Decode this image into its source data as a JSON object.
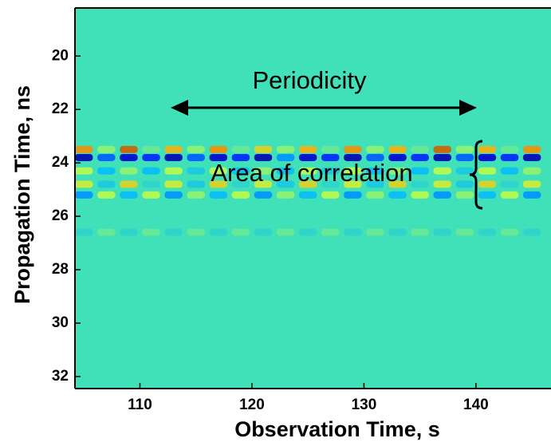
{
  "chart_data": {
    "type": "heatmap",
    "x_label": "Observation Time, s",
    "y_label": "Propagation Time, ns",
    "xlim": [
      104.2,
      146.7
    ],
    "ylim": [
      18.2,
      32.45
    ],
    "y_reversed": true,
    "xticks": [
      110,
      120,
      130,
      140
    ],
    "yticks": [
      20,
      22,
      24,
      26,
      28,
      30,
      32
    ],
    "zlim": [
      -1,
      1
    ],
    "colormap": [
      "#00008f",
      "#0000ff",
      "#00b8ff",
      "#40e0b8",
      "#c8ff40",
      "#ffa000",
      "#8f0000"
    ],
    "x": [
      105,
      107,
      109,
      111,
      113,
      115,
      117,
      119,
      121,
      123,
      125,
      127,
      129,
      131,
      133,
      135,
      137,
      139,
      141,
      143,
      145
    ],
    "y": [
      23.5,
      23.8,
      24.3,
      24.8,
      25.2,
      26.6
    ],
    "z": [
      [
        0.7,
        0.2,
        0.8,
        0.1,
        0.6,
        0.2,
        0.7,
        0.1,
        0.5,
        0.2,
        0.6,
        0.1,
        0.7,
        0.2,
        0.6,
        0.1,
        0.8,
        0.2,
        0.6,
        0.1,
        0.7
      ],
      [
        -0.9,
        -0.5,
        -0.8,
        -0.6,
        -0.9,
        -0.5,
        -0.8,
        -0.6,
        -0.9,
        -0.4,
        -0.8,
        -0.6,
        -0.9,
        -0.5,
        -0.8,
        -0.6,
        -0.9,
        -0.5,
        -0.8,
        -0.6,
        -0.9
      ],
      [
        0.3,
        -0.3,
        0.2,
        -0.3,
        0.3,
        -0.2,
        0.3,
        -0.3,
        0.2,
        -0.3,
        0.3,
        -0.2,
        0.3,
        -0.3,
        0.2,
        -0.3,
        0.3,
        -0.2,
        0.3,
        -0.3,
        0.2
      ],
      [
        0.4,
        -0.2,
        0.5,
        -0.1,
        0.4,
        -0.2,
        0.5,
        -0.1,
        0.4,
        -0.2,
        0.5,
        -0.1,
        0.4,
        -0.2,
        0.5,
        -0.1,
        0.4,
        -0.2,
        0.5,
        -0.1,
        0.4
      ],
      [
        -0.4,
        0.3,
        -0.3,
        0.3,
        -0.4,
        0.2,
        -0.3,
        0.3,
        -0.4,
        0.2,
        -0.3,
        0.3,
        -0.4,
        0.2,
        -0.3,
        0.3,
        -0.4,
        0.2,
        -0.3,
        0.3,
        -0.4
      ],
      [
        -0.1,
        0.1,
        -0.1,
        0.1,
        -0.1,
        0.1,
        -0.1,
        0.1,
        -0.1,
        0.1,
        -0.1,
        0.1,
        -0.1,
        0.1,
        -0.1,
        0.1,
        -0.1,
        0.1,
        -0.1,
        0.1,
        -0.1
      ]
    ],
    "annotations": [
      "Periodicity",
      "Area of correlation"
    ]
  }
}
